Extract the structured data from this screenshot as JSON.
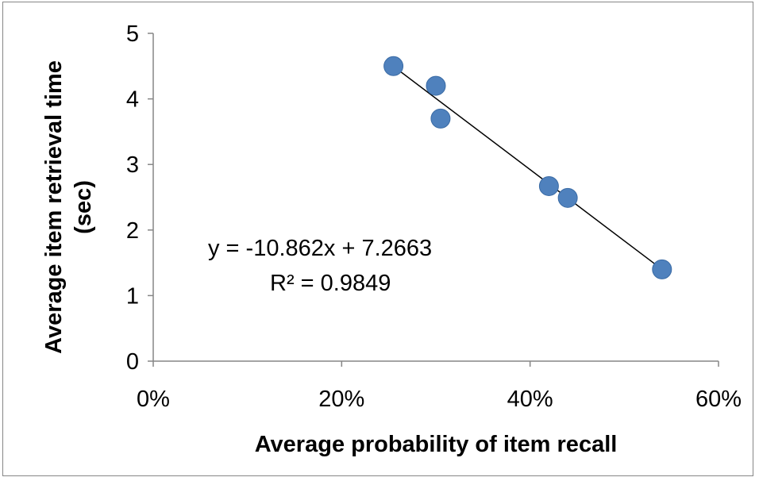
{
  "chart_data": {
    "type": "scatter",
    "xlabel": "Average probability of item recall",
    "ylabel_lines": [
      "Average item retrieval time",
      "(sec)"
    ],
    "xlim": [
      0,
      0.6
    ],
    "ylim": [
      0,
      5
    ],
    "x_ticks": [
      0,
      0.2,
      0.4,
      0.6
    ],
    "x_tick_labels": [
      "0%",
      "20%",
      "40%",
      "60%"
    ],
    "y_ticks": [
      0,
      1,
      2,
      3,
      4,
      5
    ],
    "y_tick_labels": [
      "0",
      "1",
      "2",
      "3",
      "4",
      "5"
    ],
    "grid": false,
    "legend": "none",
    "marker_color": "#4F81BD",
    "points": [
      {
        "x": 0.255,
        "y": 4.5
      },
      {
        "x": 0.3,
        "y": 4.2
      },
      {
        "x": 0.305,
        "y": 3.7
      },
      {
        "x": 0.42,
        "y": 2.67
      },
      {
        "x": 0.44,
        "y": 2.49
      },
      {
        "x": 0.54,
        "y": 1.4
      }
    ],
    "trendline": {
      "type": "linear",
      "slope": -10.862,
      "intercept": 7.2663,
      "x_range": [
        0.255,
        0.54
      ],
      "equation_label": "y = -10.862x + 7.2663",
      "r2_label": "R² = 0.9849"
    }
  }
}
